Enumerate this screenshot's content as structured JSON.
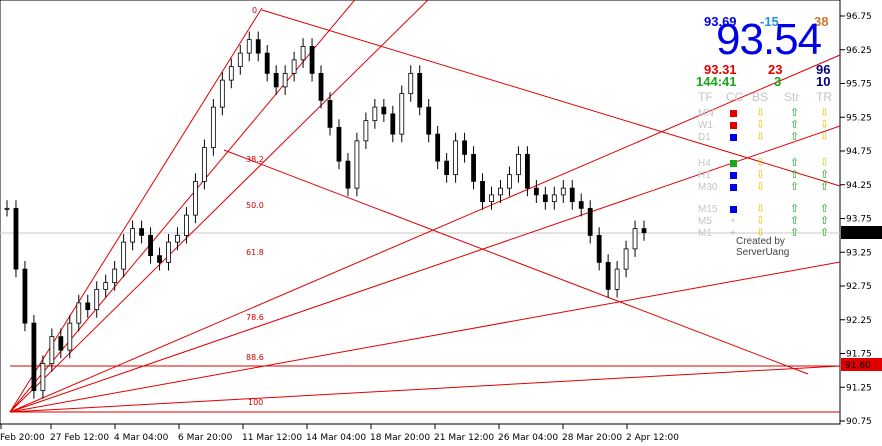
{
  "chart_data": {
    "type": "candlestick",
    "symbol_price_box": "93.54",
    "level_box": "91.60",
    "ylim": [
      90.75,
      96.75
    ],
    "y_ticks": [
      "96.75",
      "96.25",
      "95.75",
      "95.25",
      "94.75",
      "94.25",
      "93.75",
      "93.25",
      "92.75",
      "92.25",
      "91.75",
      "91.25",
      "90.75"
    ],
    "x_ticks": [
      "Feb 20:00",
      "27 Feb 12:00",
      "4 Mar 04:00",
      "6 Mar 20:00",
      "11 Mar 12:00",
      "14 Mar 04:00",
      "18 Mar 20:00",
      "21 Mar 12:00",
      "26 Mar 04:00",
      "28 Mar 20:00",
      "2 Apr 12:00"
    ],
    "fib_labels": [
      "0",
      "38.2",
      "50.0",
      "61.8",
      "78.6",
      "88.6",
      "100"
    ],
    "current_price": 93.54,
    "close_series": [
      93.9,
      93.0,
      92.2,
      91.2,
      91.6,
      92.0,
      91.8,
      92.2,
      92.5,
      92.4,
      92.7,
      92.8,
      93.0,
      93.4,
      93.6,
      93.5,
      93.2,
      93.1,
      93.4,
      93.5,
      93.8,
      94.3,
      94.8,
      95.4,
      95.8,
      96.0,
      96.2,
      96.4,
      96.2,
      95.9,
      95.7,
      95.9,
      96.1,
      96.3,
      95.9,
      95.5,
      95.1,
      94.6,
      94.2,
      94.9,
      95.2,
      95.4,
      95.3,
      95.0,
      95.6,
      95.9,
      95.4,
      95.0,
      94.6,
      94.4,
      94.9,
      94.7,
      94.3,
      94.0,
      94.1,
      94.2,
      94.4,
      94.7,
      94.2,
      94.1,
      94.0,
      94.1,
      94.2,
      94.0,
      93.9,
      93.5,
      93.1,
      92.7,
      93.0,
      93.3,
      93.6,
      93.54
    ],
    "colors": {
      "fan": "#e00000",
      "candle": "#000000",
      "price_tag": "#000000",
      "level_tag": "#e00000"
    }
  },
  "panel": {
    "top_left": "93.69",
    "top_mid": "-15",
    "top_right": "38",
    "big_price": "93.54",
    "row2_left": "93.31",
    "row2_mid": "23",
    "row2_right": "96",
    "row3_left": "144:41",
    "row3_mid": "3",
    "row3_right": "10",
    "headers": [
      "TF",
      "CC",
      "BS",
      "Str",
      "TR"
    ],
    "timeframes": [
      "MN",
      "W1",
      "D1",
      "H4",
      "H1",
      "M30",
      "M15",
      "M5",
      "M1"
    ],
    "credit": "Created by ServerUang",
    "colors": {
      "blue": "#0000e6",
      "red": "#e00000",
      "green": "#1aa61a",
      "orange": "#e07a1a",
      "lightblue": "#2a8fe0",
      "gray": "#c4c4c4",
      "yellow": "#e6c800"
    }
  }
}
